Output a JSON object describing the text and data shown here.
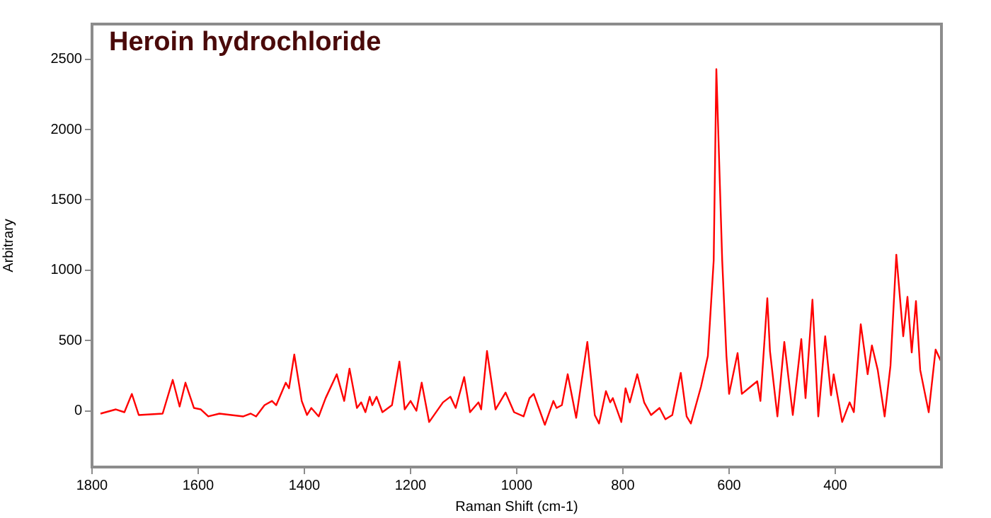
{
  "chart_data": {
    "type": "line",
    "title": "Heroin hydrochloride",
    "xlabel": "Raman Shift (cm-1)",
    "ylabel": "Arbitrary",
    "x": [
      1784,
      1755,
      1739,
      1725,
      1712,
      1667,
      1648,
      1635,
      1624,
      1608,
      1595,
      1581,
      1560,
      1515,
      1501,
      1491,
      1475,
      1461,
      1453,
      1435,
      1429,
      1419,
      1405,
      1395,
      1387,
      1373,
      1360,
      1339,
      1325,
      1315,
      1301,
      1293,
      1285,
      1277,
      1272,
      1264,
      1253,
      1235,
      1221,
      1211,
      1200,
      1189,
      1179,
      1165,
      1139,
      1125,
      1115,
      1099,
      1088,
      1072,
      1067,
      1056,
      1040,
      1021,
      1005,
      987,
      976,
      968,
      947,
      931,
      925,
      915,
      904,
      888,
      867,
      853,
      845,
      832,
      824,
      819,
      803,
      795,
      787,
      773,
      760,
      747,
      731,
      720,
      707,
      691,
      680,
      672,
      653,
      640,
      629,
      624,
      613,
      605,
      600,
      584,
      576,
      560,
      547,
      541,
      528,
      523,
      509,
      496,
      480,
      464,
      456,
      443,
      432,
      419,
      408,
      403,
      387,
      373,
      365,
      352,
      339,
      331,
      320,
      307,
      296,
      285,
      272,
      264,
      256,
      248,
      240,
      224,
      211,
      200
    ],
    "series": [
      {
        "color": "#ff0000",
        "values": [
          -20,
          10,
          -10,
          120,
          -30,
          -20,
          220,
          30,
          200,
          20,
          10,
          -40,
          -20,
          -40,
          -20,
          -40,
          40,
          70,
          40,
          200,
          160,
          400,
          70,
          -30,
          20,
          -40,
          90,
          260,
          70,
          300,
          20,
          60,
          -10,
          100,
          40,
          100,
          -10,
          40,
          350,
          10,
          70,
          0,
          200,
          -80,
          60,
          100,
          20,
          240,
          -10,
          60,
          10,
          425,
          10,
          130,
          -10,
          -40,
          90,
          120,
          -100,
          70,
          20,
          40,
          260,
          -50,
          490,
          -30,
          -90,
          140,
          60,
          90,
          -80,
          160,
          60,
          260,
          60,
          -30,
          20,
          -60,
          -30,
          270,
          -40,
          -90,
          170,
          390,
          1070,
          2430,
          1070,
          390,
          120,
          410,
          120,
          170,
          210,
          70,
          800,
          425,
          -40,
          490,
          -30,
          510,
          90,
          790,
          -40,
          530,
          110,
          260,
          -80,
          60,
          -10,
          615,
          260,
          465,
          290,
          -40,
          320,
          1110,
          530,
          810,
          415,
          780,
          290,
          -10,
          435,
          345
        ]
      }
    ],
    "xlim": [
      1800,
      200
    ],
    "xticks": [
      1800,
      1600,
      1400,
      1200,
      1000,
      800,
      600,
      400
    ],
    "ylim": [
      -400,
      2750
    ],
    "yticks": [
      0,
      500,
      1000,
      1500,
      2000,
      2500
    ],
    "grid": false,
    "legend": false,
    "marker": "none",
    "line_style": "solid"
  }
}
